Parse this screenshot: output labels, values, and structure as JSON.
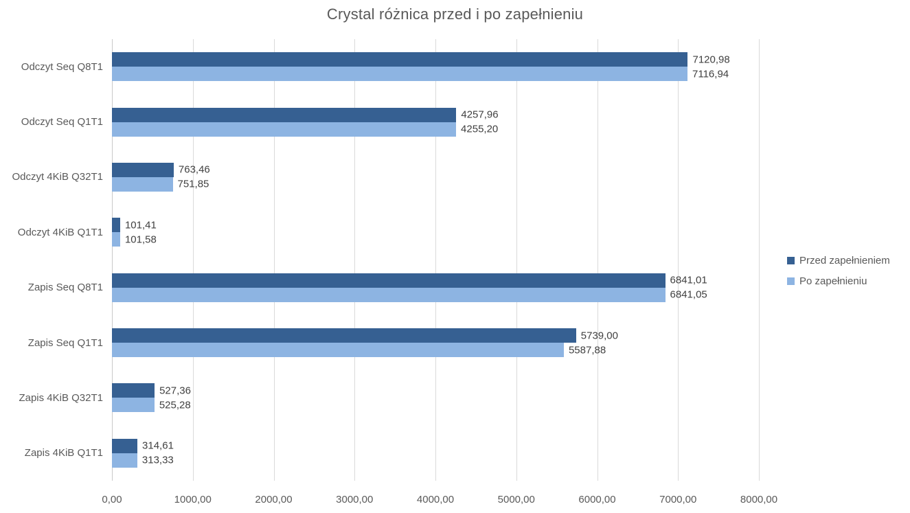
{
  "chart_data": {
    "type": "bar",
    "orientation": "horizontal",
    "title": "Crystal różnica przed i po zapełnieniu",
    "categories": [
      "Odczyt Seq Q8T1",
      "Odczyt Seq Q1T1",
      "Odczyt 4KiB Q32T1",
      "Odczyt 4KiB Q1T1",
      "Zapis Seq Q8T1",
      "Zapis Seq Q1T1",
      "Zapis 4KiB Q32T1",
      "Zapis 4KiB Q1T1"
    ],
    "series": [
      {
        "name": "Przed zapełnieniem",
        "color": "#366092",
        "values": [
          7120.98,
          4257.96,
          763.46,
          101.41,
          6841.01,
          5739.0,
          527.36,
          314.61
        ]
      },
      {
        "name": "Po zapełnieniu",
        "color": "#8db4e2",
        "values": [
          7116.94,
          4255.2,
          751.85,
          101.58,
          6841.05,
          5587.88,
          525.28,
          313.33
        ]
      }
    ],
    "xlim": [
      0,
      8000
    ],
    "x_tick_step": 1000,
    "x_tick_labels": [
      "0,00",
      "1000,00",
      "2000,00",
      "3000,00",
      "4000,00",
      "5000,00",
      "6000,00",
      "7000,00",
      "8000,00"
    ],
    "decimal_separator": ",",
    "grid": true,
    "legend_position": "right",
    "colors": {
      "title_text": "#595959",
      "axis_text": "#595959",
      "data_label_text": "#404040",
      "gridline": "#d9d9d9",
      "background": "#ffffff"
    }
  }
}
